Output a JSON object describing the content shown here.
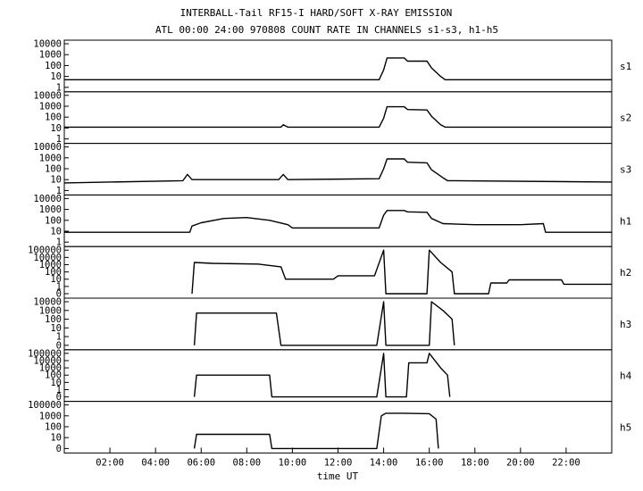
{
  "chart_data": {
    "type": "line",
    "title": "INTERBALL-Tail RF15-I HARD/SOFT X-RAY EMISSION",
    "subtitle": "ATL 00:00 24:00 970808  COUNT RATE IN CHANNELS s1-s3, h1-h5",
    "xlabel": "time UT",
    "x_ticks": [
      "02:00",
      "04:00",
      "06:00",
      "08:00",
      "10:00",
      "12:00",
      "14:00",
      "16:00",
      "18:00",
      "20:00",
      "22:00"
    ],
    "xlim": [
      0,
      24
    ],
    "y_scale": "log",
    "panels": [
      {
        "name": "s1",
        "y_ticks": [
          "10000",
          "1000",
          "100",
          "10",
          "1"
        ],
        "ylim": [
          1,
          10000
        ],
        "values": [
          [
            0,
            5
          ],
          [
            13.8,
            5
          ],
          [
            14.0,
            40
          ],
          [
            14.15,
            500
          ],
          [
            14.9,
            500
          ],
          [
            15.05,
            250
          ],
          [
            15.9,
            250
          ],
          [
            16.1,
            60
          ],
          [
            16.5,
            10
          ],
          [
            16.7,
            5
          ],
          [
            24,
            5
          ]
        ]
      },
      {
        "name": "s2",
        "y_ticks": [
          "10000",
          "1000",
          "100",
          "10",
          "1"
        ],
        "ylim": [
          1,
          10000
        ],
        "values": [
          [
            0,
            12
          ],
          [
            9.5,
            12
          ],
          [
            9.6,
            20
          ],
          [
            9.8,
            12
          ],
          [
            13.8,
            12
          ],
          [
            14.0,
            80
          ],
          [
            14.15,
            900
          ],
          [
            14.9,
            900
          ],
          [
            15.05,
            500
          ],
          [
            15.9,
            450
          ],
          [
            16.1,
            120
          ],
          [
            16.5,
            20
          ],
          [
            16.7,
            12
          ],
          [
            24,
            12
          ]
        ]
      },
      {
        "name": "s3",
        "y_ticks": [
          "10000",
          "1000",
          "100",
          "10",
          "1"
        ],
        "ylim": [
          1,
          10000
        ],
        "values": [
          [
            0,
            5
          ],
          [
            5.2,
            8
          ],
          [
            5.4,
            30
          ],
          [
            5.6,
            10
          ],
          [
            9.4,
            10
          ],
          [
            9.6,
            30
          ],
          [
            9.8,
            10
          ],
          [
            13.8,
            12
          ],
          [
            14.0,
            100
          ],
          [
            14.15,
            800
          ],
          [
            14.9,
            800
          ],
          [
            15.05,
            400
          ],
          [
            15.9,
            350
          ],
          [
            16.1,
            80
          ],
          [
            16.6,
            15
          ],
          [
            16.8,
            8
          ],
          [
            24,
            6
          ]
        ]
      },
      {
        "name": "h1",
        "y_ticks": [
          "10000",
          "1000",
          "100",
          "10",
          "1"
        ],
        "ylim": [
          1,
          10000
        ],
        "values": [
          [
            0,
            8
          ],
          [
            5.5,
            8
          ],
          [
            5.6,
            30
          ],
          [
            6.0,
            60
          ],
          [
            7.0,
            150
          ],
          [
            8.0,
            180
          ],
          [
            9.0,
            100
          ],
          [
            9.8,
            40
          ],
          [
            10.0,
            20
          ],
          [
            13.8,
            20
          ],
          [
            14.0,
            300
          ],
          [
            14.15,
            800
          ],
          [
            14.9,
            800
          ],
          [
            15.05,
            600
          ],
          [
            15.9,
            550
          ],
          [
            16.1,
            150
          ],
          [
            16.6,
            50
          ],
          [
            18.0,
            40
          ],
          [
            20.0,
            40
          ],
          [
            21.0,
            50
          ],
          [
            21.1,
            8
          ],
          [
            24,
            8
          ]
        ]
      },
      {
        "name": "h2",
        "y_ticks": [
          "100000",
          "10000",
          "1000",
          "100",
          "10",
          "1",
          "0"
        ],
        "ylim": [
          0,
          100000
        ],
        "values": [
          [
            5.6,
            1
          ],
          [
            5.7,
            2000
          ],
          [
            6.5,
            1500
          ],
          [
            8.5,
            1200
          ],
          [
            9.5,
            500
          ],
          [
            9.7,
            10
          ],
          [
            11.8,
            10
          ],
          [
            12.0,
            30
          ],
          [
            13.6,
            30
          ],
          [
            14.0,
            100000
          ],
          [
            14.1,
            1
          ],
          [
            15.9,
            1
          ],
          [
            16.0,
            100000
          ],
          [
            16.5,
            2000
          ],
          [
            17.0,
            100
          ],
          [
            17.1,
            1
          ],
          [
            18.6,
            1
          ],
          [
            18.7,
            3
          ],
          [
            19.4,
            3
          ],
          [
            19.5,
            8
          ],
          [
            21.8,
            8
          ],
          [
            21.9,
            2
          ],
          [
            24,
            2
          ]
        ]
      },
      {
        "name": "h3",
        "y_ticks": [
          "10000",
          "1000",
          "100",
          "10",
          "1",
          "0"
        ],
        "ylim": [
          0,
          10000
        ],
        "values": [
          [
            5.7,
            0
          ],
          [
            5.8,
            500
          ],
          [
            9.3,
            500
          ],
          [
            9.5,
            0
          ],
          [
            13.7,
            0
          ],
          [
            14.0,
            10000
          ],
          [
            14.1,
            0
          ],
          [
            16.0,
            0
          ],
          [
            16.1,
            10000
          ],
          [
            16.6,
            1000
          ],
          [
            17.0,
            100
          ],
          [
            17.1,
            0
          ]
        ]
      },
      {
        "name": "h4",
        "y_ticks": [
          "100000",
          "10000",
          "1000",
          "100",
          "10",
          "1",
          "0"
        ],
        "ylim": [
          0,
          100000
        ],
        "values": [
          [
            5.7,
            0
          ],
          [
            5.8,
            100
          ],
          [
            9.0,
            100
          ],
          [
            9.1,
            0
          ],
          [
            13.7,
            0
          ],
          [
            14.0,
            100000
          ],
          [
            14.1,
            0
          ],
          [
            15.0,
            0
          ],
          [
            15.1,
            5000
          ],
          [
            15.9,
            5000
          ],
          [
            16.0,
            100000
          ],
          [
            16.5,
            1000
          ],
          [
            16.8,
            100
          ],
          [
            16.9,
            0
          ]
        ]
      },
      {
        "name": "h5",
        "y_ticks": [
          "100000",
          "1000",
          "100",
          "10",
          "0"
        ],
        "ylim": [
          0,
          100000
        ],
        "values": [
          [
            5.7,
            0
          ],
          [
            5.8,
            20
          ],
          [
            9.0,
            20
          ],
          [
            9.1,
            0
          ],
          [
            13.7,
            0
          ],
          [
            13.9,
            1000
          ],
          [
            14.1,
            3000
          ],
          [
            14.9,
            3000
          ],
          [
            16.0,
            2500
          ],
          [
            16.3,
            500
          ],
          [
            16.4,
            0
          ]
        ]
      }
    ]
  }
}
